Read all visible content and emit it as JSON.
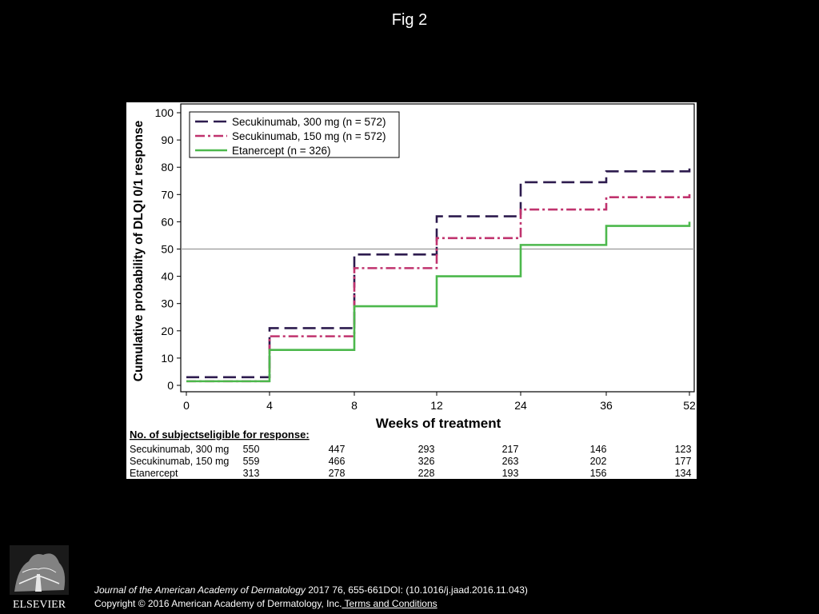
{
  "page": {
    "title": "Fig 2"
  },
  "footer": {
    "citation_journal": "Journal of the American Academy of Dermatology",
    "citation_rest": " 2017 76, 655-661DOI: (10.1016/j.jaad.2016.11.043)",
    "copyright": "Copyright © 2016 American Academy of Dermatology, Inc.",
    "terms_link": " Terms and Conditions"
  },
  "logo": {
    "text": "ELSEVIER"
  },
  "chart_data": {
    "type": "line",
    "step": true,
    "xlabel": "Weeks of treatment",
    "ylabel": "Cumulative probability of DLQI 0/1 response",
    "x": [
      0,
      4,
      8,
      12,
      24,
      36,
      52
    ],
    "x_ticks": [
      "0",
      "4",
      "8",
      "12",
      "24",
      "36",
      "52"
    ],
    "y_ticks": [
      0,
      10,
      20,
      30,
      40,
      50,
      60,
      70,
      80,
      90,
      100
    ],
    "ylim": [
      0,
      100
    ],
    "reference_line": 50,
    "legend_position": "top-left",
    "series": [
      {
        "name": "Secukinumab, 300 mg (n = 572)",
        "values": [
          3,
          21,
          48,
          62,
          74.5,
          78.5,
          80.5
        ],
        "color": "#2d1b4e",
        "dash": "long-dash"
      },
      {
        "name": "Secukinumab, 150 mg (n = 572)",
        "values": [
          1.5,
          18,
          43,
          54,
          64.5,
          69,
          71
        ],
        "color": "#c0336e",
        "dash": "dash-dot"
      },
      {
        "name": "Etanercept (n = 326)",
        "values": [
          1.5,
          13,
          29,
          40,
          51.5,
          58.5,
          60
        ],
        "color": "#4cb84c",
        "dash": "solid"
      }
    ],
    "risk_table": {
      "header": "No. of subjectseligible for response:",
      "rows": [
        {
          "label": "Secukinumab, 300 mg",
          "values": [
            "550",
            "447",
            "293",
            "217",
            "146",
            "123"
          ]
        },
        {
          "label": "Secukinumab, 150 mg",
          "values": [
            "559",
            "466",
            "326",
            "263",
            "202",
            "177"
          ]
        },
        {
          "label": "Etanercept",
          "values": [
            "313",
            "278",
            "228",
            "193",
            "156",
            "134"
          ]
        }
      ]
    }
  }
}
